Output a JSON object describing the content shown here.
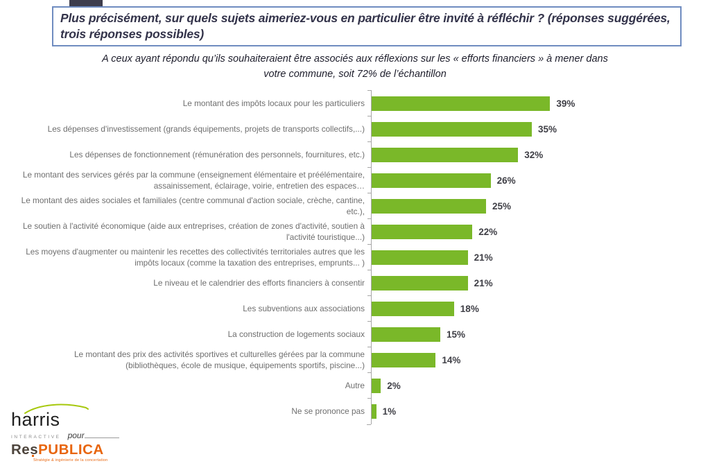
{
  "slide": {
    "title": "Plus précisément, sur quels sujets aimeriez-vous en particulier être invité à réfléchir ? (réponses suggérées, trois réponses possibles)",
    "subtitle": "A ceux ayant répondu qu’ils souhaiteraient être associés aux réflexions sur les « efforts financiers » à mener dans votre commune, soit 72% de l’échantillon"
  },
  "chart_data": {
    "type": "bar",
    "orientation": "horizontal",
    "unit": "%",
    "categories": [
      "Le montant des impôts locaux pour les particuliers",
      "Les dépenses d'investissement (grands équipements, projets de transports collectifs,...)",
      "Les dépenses de fonctionnement (rémunération des personnels, fournitures, etc.)",
      "Le montant des services gérés par la commune (enseignement élémentaire et préélémentaire, assainissement, éclairage, voirie, entretien des espaces…",
      "Le montant des aides sociales et familiales (centre communal d'action sociale, crèche, cantine, etc.),",
      "Le soutien à l'activité économique (aide aux entreprises, création de zones d'activité, soutien à l'activité touristique...)",
      "Les moyens d'augmenter ou maintenir les recettes des collectivités territoriales autres que les impôts locaux (comme la taxation des entreprises, emprunts... )",
      "Le niveau et le calendrier des efforts financiers à consentir",
      "Les subventions aux associations",
      "La construction de logements sociaux",
      "Le montant des prix des activités sportives et culturelles gérées par la commune (bibliothèques, école de musique, équipements sportifs, piscine...)",
      "Autre",
      "Ne se prononce pas"
    ],
    "values": [
      39,
      35,
      32,
      26,
      25,
      22,
      21,
      21,
      18,
      15,
      14,
      2,
      1
    ],
    "bar_color": "#7ab829",
    "value_label_format": "{v}%",
    "xlim": [
      0,
      40
    ],
    "legend": "none",
    "grid": "off",
    "axis_color": "#a6a6a6"
  },
  "logo": {
    "harris": "harris",
    "harris_sub": "INTERACTIVE",
    "pour": "pour",
    "respublica_prefix": "Res",
    "respublica_suffix": "PUBLICA",
    "tagline": "Stratégie & ingénierie de la concertation"
  }
}
